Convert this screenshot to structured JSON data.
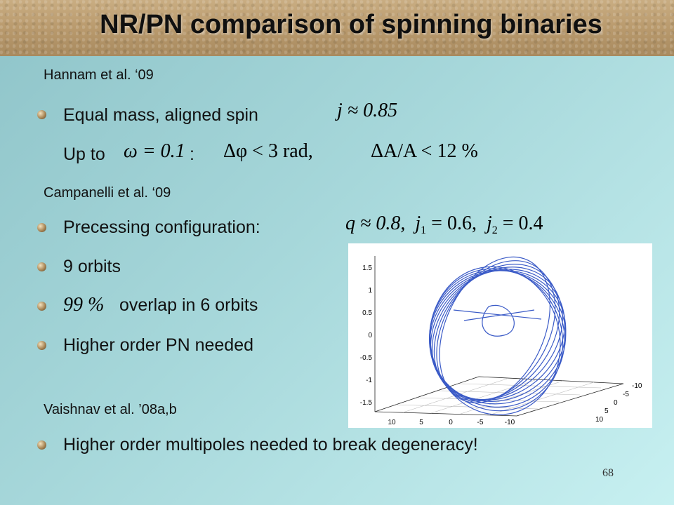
{
  "title": "NR/PN comparison of spinning binaries",
  "hannam": {
    "ref": "Hannam et al. ‘09",
    "item1": "Equal mass, aligned spin",
    "item1_math": "j ≈ 0.85",
    "item2_prefix": "Up to",
    "item2_math1": "ω = 0.1",
    "item2_colon": ":",
    "item2_math2": "Δφ < 3 rad,",
    "item2_math3": "ΔA/A < 12 %"
  },
  "campanelli": {
    "ref": "Campanelli et al. ‘09",
    "items": [
      "Precessing configuration:",
      "9 orbits",
      "overlap in 6 orbits",
      "Higher order PN needed"
    ],
    "overlap_math": "99 %",
    "params_math": {
      "q": "q ≈ 0.8,",
      "j1": "j",
      "j1_sub": "1",
      "j1_val": "= 0.6,",
      "j2": "j",
      "j2_sub": "2",
      "j2_val": "= 0.4"
    }
  },
  "vaishnav": {
    "ref": "Vaishnav et al. ’08a,b",
    "item": "Higher order multipoles needed to break degeneracy!"
  },
  "plot": {
    "z_ticks": [
      "1.5",
      "1",
      "0.5",
      "0",
      "-0.5",
      "-1",
      "-1.5"
    ],
    "x_ticks": [
      "10",
      "5",
      "0",
      "-5",
      "-10"
    ],
    "y_ticks": [
      "-10",
      "-5",
      "0",
      "5",
      "10"
    ],
    "line_color": "#3b5bc7"
  },
  "page_number": "68"
}
